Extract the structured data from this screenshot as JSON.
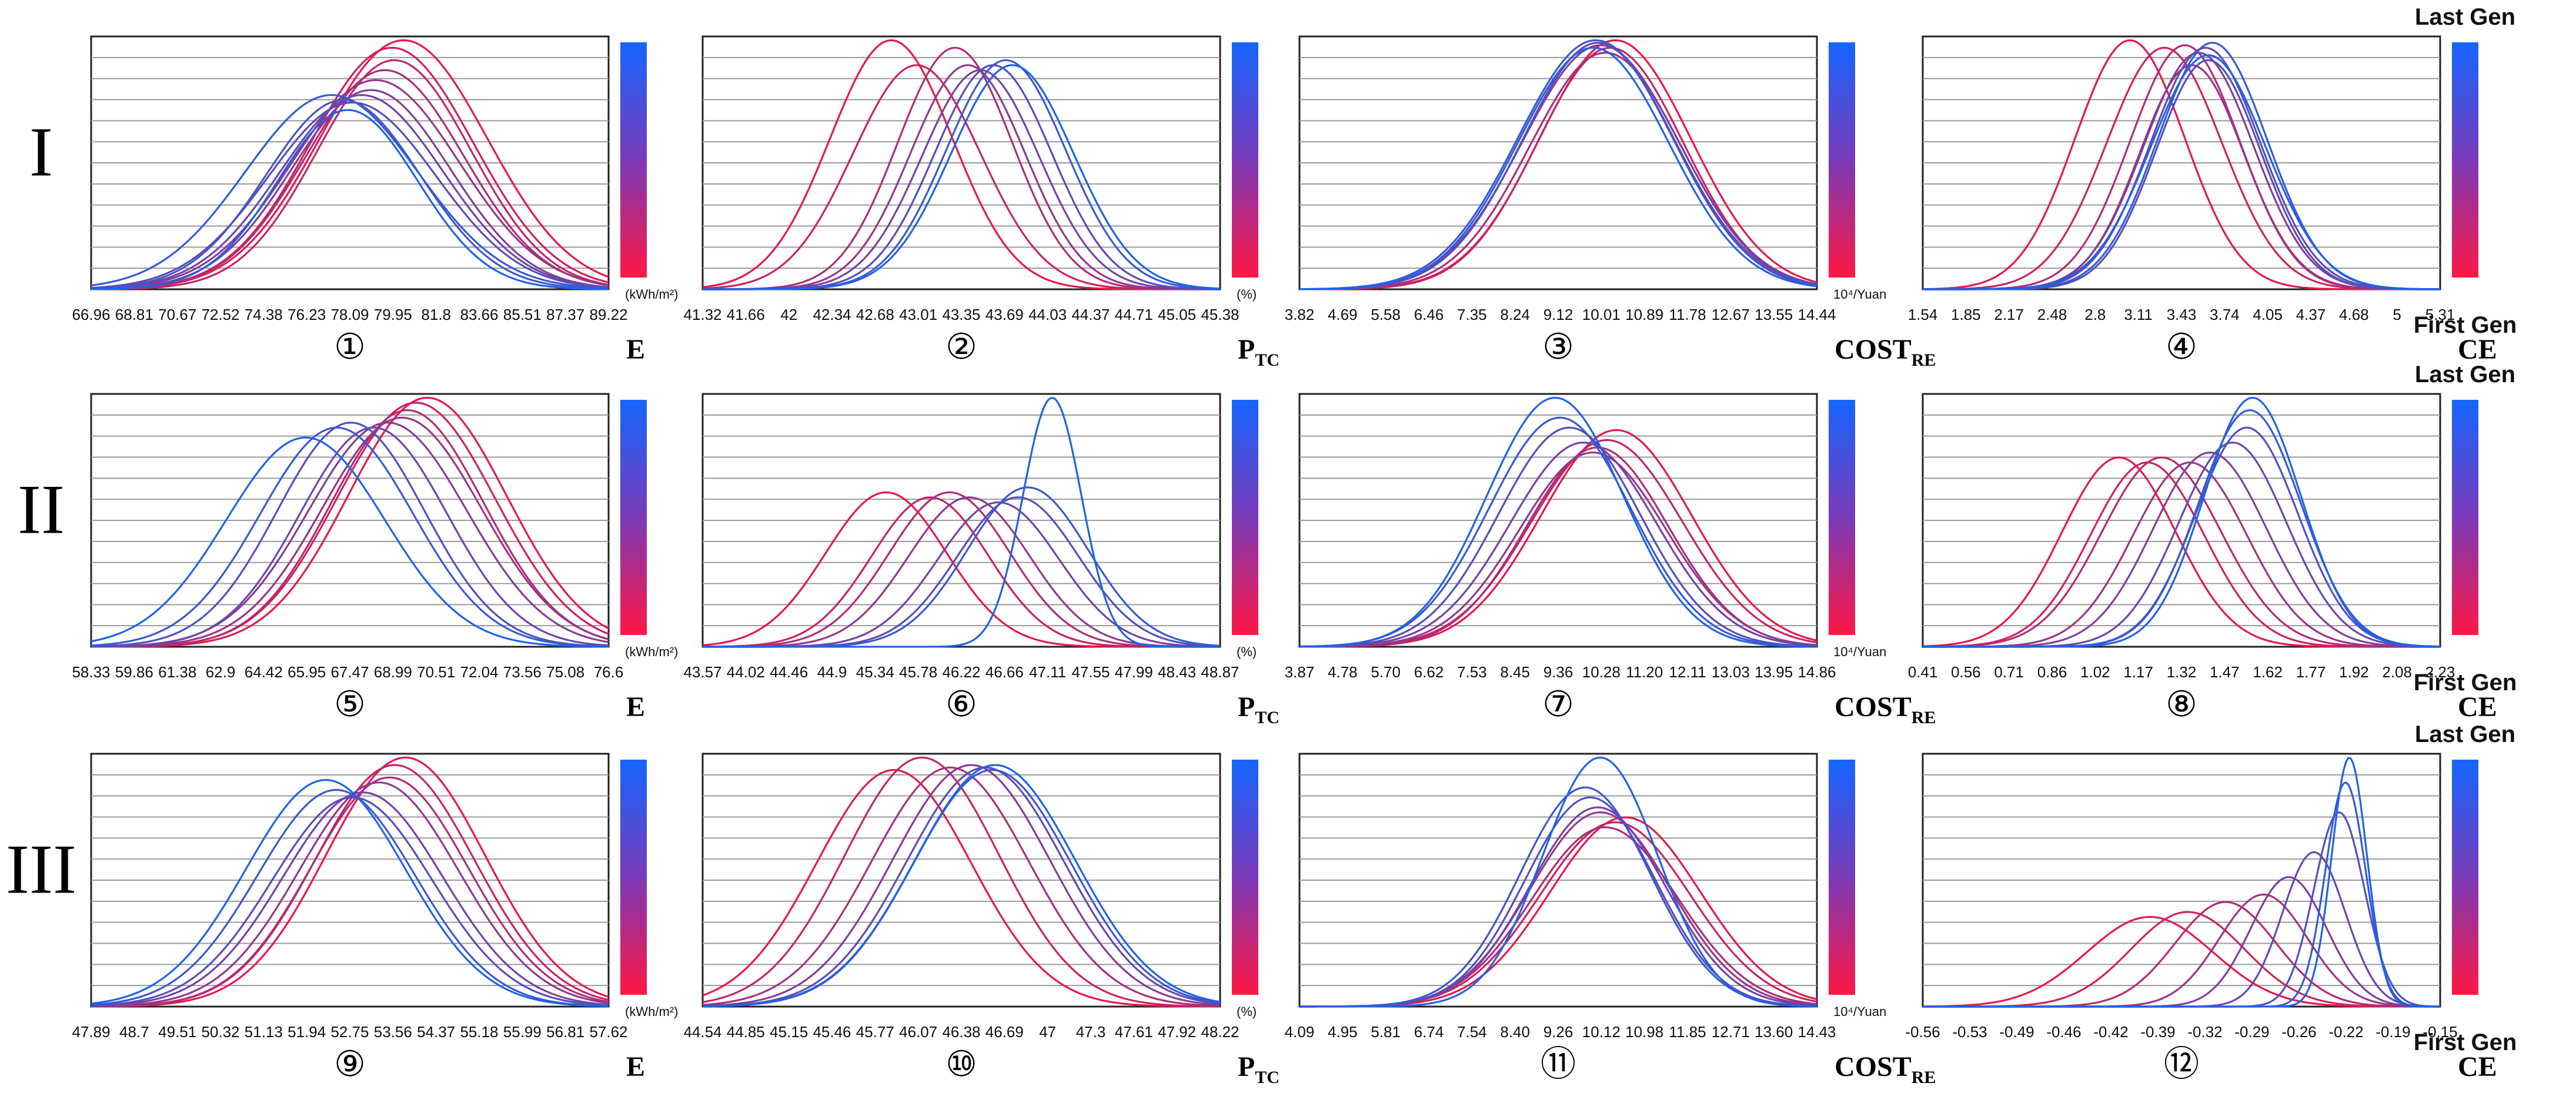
{
  "figure": {
    "row_labels": [
      "I",
      "II",
      "III"
    ],
    "colorbar": {
      "top_color": "#1565ff",
      "mid_color": "#7a3ab8",
      "bottom_color": "#ff1744",
      "top_label": "Last Gen",
      "bottom_label": "First Gen"
    },
    "line_colors": {
      "first_gen": "#e8174a",
      "last_gen": "#1e63e8"
    }
  },
  "chart_data": [
    {
      "id": 1,
      "circled": "①",
      "type": "line",
      "var_label": "E",
      "units": "(kWh/m²)",
      "ticks": [
        "66.96",
        "68.81",
        "70.67",
        "72.52",
        "74.38",
        "76.23",
        "78.09",
        "79.95",
        "81.8",
        "83.66",
        "85.51",
        "87.37",
        "89.22"
      ],
      "xlim": [
        66.96,
        89.22
      ],
      "ylim": [
        0,
        1
      ],
      "gridlines": 11,
      "series": [
        {
          "name": "gen 1",
          "mean": 80.4,
          "sd": 3.6,
          "peak": 1.0
        },
        {
          "name": "gen 2",
          "mean": 79.9,
          "sd": 3.5,
          "peak": 0.97
        },
        {
          "name": "gen 3",
          "mean": 80.0,
          "sd": 3.3,
          "peak": 0.92
        },
        {
          "name": "gen 4",
          "mean": 79.6,
          "sd": 3.4,
          "peak": 0.88
        },
        {
          "name": "gen 5",
          "mean": 79.2,
          "sd": 3.6,
          "peak": 0.84
        },
        {
          "name": "gen 6",
          "mean": 79.0,
          "sd": 3.4,
          "peak": 0.8
        },
        {
          "name": "gen 7",
          "mean": 78.6,
          "sd": 3.5,
          "peak": 0.78
        },
        {
          "name": "gen 8",
          "mean": 78.2,
          "sd": 3.6,
          "peak": 0.75
        },
        {
          "name": "gen 9",
          "mean": 77.8,
          "sd": 3.3,
          "peak": 0.76
        },
        {
          "name": "gen 10",
          "mean": 77.3,
          "sd": 3.7,
          "peak": 0.78
        },
        {
          "name": "gen 11",
          "mean": 78.0,
          "sd": 3.0,
          "peak": 0.72
        }
      ]
    },
    {
      "id": 2,
      "circled": "②",
      "type": "line",
      "var_label": "P",
      "sub": "TC",
      "units": "(%)",
      "ticks": [
        "41.32",
        "41.66",
        "42",
        "42.34",
        "42.68",
        "43.01",
        "43.35",
        "43.69",
        "44.03",
        "44.37",
        "44.71",
        "45.05",
        "45.38"
      ],
      "xlim": [
        41.32,
        45.38
      ],
      "ylim": [
        0,
        1
      ],
      "gridlines": 11,
      "series": [
        {
          "name": "gen 1",
          "mean": 42.8,
          "sd": 0.48,
          "peak": 1.0
        },
        {
          "name": "gen 2",
          "mean": 43.0,
          "sd": 0.5,
          "peak": 0.9
        },
        {
          "name": "gen 3",
          "mean": 43.3,
          "sd": 0.45,
          "peak": 0.97
        },
        {
          "name": "gen 4",
          "mean": 43.4,
          "sd": 0.45,
          "peak": 0.9
        },
        {
          "name": "gen 5",
          "mean": 43.5,
          "sd": 0.46,
          "peak": 0.88
        },
        {
          "name": "gen 6",
          "mean": 43.6,
          "sd": 0.46,
          "peak": 0.9
        },
        {
          "name": "gen 7",
          "mean": 43.7,
          "sd": 0.47,
          "peak": 0.92
        },
        {
          "name": "gen 8",
          "mean": 43.75,
          "sd": 0.48,
          "peak": 0.9
        }
      ]
    },
    {
      "id": 3,
      "circled": "③",
      "type": "line",
      "var_label": "COST",
      "sub": "RE",
      "units": "10⁴/Yuan",
      "ticks": [
        "3.82",
        "4.69",
        "5.58",
        "6.46",
        "7.35",
        "8.24",
        "9.12",
        "10.01",
        "10.89",
        "11.78",
        "12.67",
        "13.55",
        "14.44"
      ],
      "xlim": [
        3.82,
        14.44
      ],
      "ylim": [
        0,
        1
      ],
      "gridlines": 11,
      "series": [
        {
          "name": "gen 1",
          "mean": 10.3,
          "sd": 1.55,
          "peak": 1.0
        },
        {
          "name": "gen 2",
          "mean": 10.2,
          "sd": 1.5,
          "peak": 0.97
        },
        {
          "name": "gen 3",
          "mean": 10.1,
          "sd": 1.55,
          "peak": 0.95
        },
        {
          "name": "gen 4",
          "mean": 10.0,
          "sd": 1.6,
          "peak": 0.98
        },
        {
          "name": "gen 5",
          "mean": 9.95,
          "sd": 1.55,
          "peak": 0.99
        },
        {
          "name": "gen 6",
          "mean": 9.9,
          "sd": 1.6,
          "peak": 1.0
        },
        {
          "name": "gen 7",
          "mean": 9.85,
          "sd": 1.55,
          "peak": 0.97
        }
      ]
    },
    {
      "id": 4,
      "circled": "④",
      "type": "line",
      "var_label": "CE",
      "units": "",
      "ticks": [
        "1.54",
        "1.85",
        "2.17",
        "2.48",
        "2.8",
        "3.11",
        "3.43",
        "3.74",
        "4.05",
        "4.37",
        "4.68",
        "5",
        "5.31"
      ],
      "xlim": [
        1.54,
        5.31
      ],
      "ylim": [
        0,
        1
      ],
      "gridlines": 11,
      "series": [
        {
          "name": "gen 1",
          "mean": 3.05,
          "sd": 0.4,
          "peak": 1.0
        },
        {
          "name": "gen 2",
          "mean": 3.3,
          "sd": 0.42,
          "peak": 0.97
        },
        {
          "name": "gen 3",
          "mean": 3.45,
          "sd": 0.4,
          "peak": 0.98
        },
        {
          "name": "gen 4",
          "mean": 3.5,
          "sd": 0.38,
          "peak": 0.9
        },
        {
          "name": "gen 5",
          "mean": 3.55,
          "sd": 0.4,
          "peak": 0.95
        },
        {
          "name": "gen 6",
          "mean": 3.6,
          "sd": 0.4,
          "peak": 0.97
        },
        {
          "name": "gen 7",
          "mean": 3.62,
          "sd": 0.38,
          "peak": 0.92
        },
        {
          "name": "gen 8",
          "mean": 3.65,
          "sd": 0.4,
          "peak": 0.99
        },
        {
          "name": "gen 9",
          "mean": 3.62,
          "sd": 0.42,
          "peak": 0.94
        }
      ]
    },
    {
      "id": 5,
      "circled": "⑤",
      "type": "line",
      "var_label": "E",
      "units": "(kWh/m²)",
      "ticks": [
        "58.33",
        "59.86",
        "61.38",
        "62.9",
        "64.42",
        "65.95",
        "67.47",
        "68.99",
        "70.51",
        "72.04",
        "73.56",
        "75.08",
        "76.6"
      ],
      "xlim": [
        58.33,
        76.6
      ],
      "ylim": [
        0,
        1
      ],
      "gridlines": 11,
      "series": [
        {
          "name": "gen 1",
          "mean": 70.2,
          "sd": 2.8,
          "peak": 1.0
        },
        {
          "name": "gen 2",
          "mean": 69.8,
          "sd": 2.8,
          "peak": 0.98
        },
        {
          "name": "gen 3",
          "mean": 69.5,
          "sd": 2.7,
          "peak": 0.95
        },
        {
          "name": "gen 4",
          "mean": 69.3,
          "sd": 2.8,
          "peak": 0.92
        },
        {
          "name": "gen 5",
          "mean": 68.8,
          "sd": 2.8,
          "peak": 0.9
        },
        {
          "name": "gen 6",
          "mean": 68.3,
          "sd": 2.6,
          "peak": 0.88
        },
        {
          "name": "gen 7",
          "mean": 67.5,
          "sd": 2.6,
          "peak": 0.9
        },
        {
          "name": "gen 8",
          "mean": 67.0,
          "sd": 2.7,
          "peak": 0.88
        },
        {
          "name": "gen 9",
          "mean": 65.9,
          "sd": 2.8,
          "peak": 0.84
        }
      ]
    },
    {
      "id": 6,
      "circled": "⑥",
      "type": "line",
      "var_label": "P",
      "sub": "TC",
      "units": "(%)",
      "ticks": [
        "43.57",
        "44.02",
        "44.46",
        "44.9",
        "45.34",
        "45.78",
        "46.22",
        "46.66",
        "47.11",
        "47.55",
        "47.99",
        "48.43",
        "48.87"
      ],
      "xlim": [
        43.57,
        48.87
      ],
      "ylim": [
        0,
        1
      ],
      "gridlines": 11,
      "series": [
        {
          "name": "gen 1",
          "mean": 45.45,
          "sd": 0.62,
          "peak": 0.62
        },
        {
          "name": "gen 2",
          "mean": 45.9,
          "sd": 0.6,
          "peak": 0.6
        },
        {
          "name": "gen 3",
          "mean": 46.1,
          "sd": 0.62,
          "peak": 0.62
        },
        {
          "name": "gen 4",
          "mean": 46.3,
          "sd": 0.62,
          "peak": 0.6
        },
        {
          "name": "gen 5",
          "mean": 46.6,
          "sd": 0.62,
          "peak": 0.58
        },
        {
          "name": "gen 6",
          "mean": 46.8,
          "sd": 0.62,
          "peak": 0.6
        },
        {
          "name": "gen 7",
          "mean": 46.9,
          "sd": 0.62,
          "peak": 0.64
        },
        {
          "name": "gen 8",
          "mean": 47.15,
          "sd": 0.3,
          "peak": 1.0
        }
      ]
    },
    {
      "id": 7,
      "circled": "⑦",
      "type": "line",
      "var_label": "COST",
      "sub": "RE",
      "units": "10⁴/Yuan",
      "ticks": [
        "3.87",
        "4.78",
        "5.70",
        "6.62",
        "7.53",
        "8.45",
        "9.36",
        "10.28",
        "11.20",
        "12.11",
        "13.03",
        "13.95",
        "14.86"
      ],
      "xlim": [
        3.87,
        14.86
      ],
      "ylim": [
        0,
        1
      ],
      "gridlines": 11,
      "series": [
        {
          "name": "gen 1",
          "mean": 10.6,
          "sd": 1.6,
          "peak": 0.87
        },
        {
          "name": "gen 2",
          "mean": 10.4,
          "sd": 1.6,
          "peak": 0.83
        },
        {
          "name": "gen 3",
          "mean": 10.2,
          "sd": 1.5,
          "peak": 0.8
        },
        {
          "name": "gen 4",
          "mean": 10.1,
          "sd": 1.55,
          "peak": 0.78
        },
        {
          "name": "gen 5",
          "mean": 9.9,
          "sd": 1.55,
          "peak": 0.82
        },
        {
          "name": "gen 6",
          "mean": 9.6,
          "sd": 1.5,
          "peak": 0.88
        },
        {
          "name": "gen 7",
          "mean": 9.4,
          "sd": 1.5,
          "peak": 0.92
        },
        {
          "name": "gen 8",
          "mean": 9.3,
          "sd": 1.45,
          "peak": 1.0
        }
      ]
    },
    {
      "id": 8,
      "circled": "⑧",
      "type": "line",
      "var_label": "CE",
      "units": "",
      "ticks": [
        "0.41",
        "0.56",
        "0.71",
        "0.86",
        "1.02",
        "1.17",
        "1.32",
        "1.47",
        "1.62",
        "1.77",
        "1.92",
        "2.08",
        "2.23"
      ],
      "xlim": [
        0.41,
        2.23
      ],
      "ylim": [
        0,
        1
      ],
      "gridlines": 11,
      "series": [
        {
          "name": "gen 1",
          "mean": 1.1,
          "sd": 0.2,
          "peak": 0.76
        },
        {
          "name": "gen 2",
          "mean": 1.2,
          "sd": 0.2,
          "peak": 0.74
        },
        {
          "name": "gen 3",
          "mean": 1.25,
          "sd": 0.21,
          "peak": 0.76
        },
        {
          "name": "gen 4",
          "mean": 1.35,
          "sd": 0.2,
          "peak": 0.74
        },
        {
          "name": "gen 5",
          "mean": 1.42,
          "sd": 0.2,
          "peak": 0.78
        },
        {
          "name": "gen 6",
          "mean": 1.5,
          "sd": 0.19,
          "peak": 0.82
        },
        {
          "name": "gen 7",
          "mean": 1.55,
          "sd": 0.18,
          "peak": 0.88
        },
        {
          "name": "gen 8",
          "mean": 1.56,
          "sd": 0.18,
          "peak": 0.95
        },
        {
          "name": "gen 9",
          "mean": 1.57,
          "sd": 0.17,
          "peak": 1.0
        }
      ]
    },
    {
      "id": 9,
      "circled": "⑨",
      "type": "line",
      "var_label": "E",
      "units": "(kWh/m²)",
      "ticks": [
        "47.89",
        "48.7",
        "49.51",
        "50.32",
        "51.13",
        "51.94",
        "52.75",
        "53.56",
        "54.37",
        "55.18",
        "55.99",
        "56.81",
        "57.62"
      ],
      "xlim": [
        47.89,
        57.62
      ],
      "ylim": [
        0,
        1
      ],
      "gridlines": 11,
      "series": [
        {
          "name": "gen 1",
          "mean": 53.8,
          "sd": 1.5,
          "peak": 1.0
        },
        {
          "name": "gen 2",
          "mean": 53.6,
          "sd": 1.5,
          "peak": 0.97
        },
        {
          "name": "gen 3",
          "mean": 53.5,
          "sd": 1.48,
          "peak": 0.92
        },
        {
          "name": "gen 4",
          "mean": 53.3,
          "sd": 1.5,
          "peak": 0.9
        },
        {
          "name": "gen 5",
          "mean": 53.0,
          "sd": 1.5,
          "peak": 0.86
        },
        {
          "name": "gen 6",
          "mean": 52.8,
          "sd": 1.5,
          "peak": 0.84
        },
        {
          "name": "gen 7",
          "mean": 52.5,
          "sd": 1.48,
          "peak": 0.87
        },
        {
          "name": "gen 8",
          "mean": 52.3,
          "sd": 1.5,
          "peak": 0.91
        }
      ]
    },
    {
      "id": 10,
      "circled": "⑩",
      "type": "line",
      "var_label": "P",
      "sub": "TC",
      "units": "(%)",
      "ticks": [
        "44.54",
        "44.85",
        "45.15",
        "45.46",
        "45.77",
        "46.07",
        "46.38",
        "46.69",
        "47",
        "47.3",
        "47.61",
        "47.92",
        "48.22"
      ],
      "xlim": [
        44.54,
        48.22
      ],
      "ylim": [
        0,
        1
      ],
      "gridlines": 11,
      "series": [
        {
          "name": "gen 1",
          "mean": 45.9,
          "sd": 0.55,
          "peak": 0.95
        },
        {
          "name": "gen 2",
          "mean": 46.1,
          "sd": 0.55,
          "peak": 1.0
        },
        {
          "name": "gen 3",
          "mean": 46.3,
          "sd": 0.56,
          "peak": 0.96
        },
        {
          "name": "gen 4",
          "mean": 46.45,
          "sd": 0.56,
          "peak": 0.97
        },
        {
          "name": "gen 5",
          "mean": 46.55,
          "sd": 0.56,
          "peak": 0.96
        },
        {
          "name": "gen 6",
          "mean": 46.6,
          "sd": 0.56,
          "peak": 0.95
        },
        {
          "name": "gen 7",
          "mean": 46.62,
          "sd": 0.57,
          "peak": 0.97
        }
      ]
    },
    {
      "id": 11,
      "circled": "⑪",
      "type": "line",
      "var_label": "COST",
      "sub": "RE",
      "units": "10⁴/Yuan",
      "ticks": [
        "4.09",
        "4.95",
        "5.81",
        "6.74",
        "7.54",
        "8.40",
        "9.26",
        "10.12",
        "10.98",
        "11.85",
        "12.71",
        "13.60",
        "14.43"
      ],
      "xlim": [
        4.09,
        14.43
      ],
      "ylim": [
        0,
        1
      ],
      "gridlines": 11,
      "series": [
        {
          "name": "gen 1",
          "mean": 10.6,
          "sd": 1.5,
          "peak": 0.76
        },
        {
          "name": "gen 2",
          "mean": 10.4,
          "sd": 1.5,
          "peak": 0.74
        },
        {
          "name": "gen 3",
          "mean": 10.2,
          "sd": 1.45,
          "peak": 0.72
        },
        {
          "name": "gen 4",
          "mean": 10.1,
          "sd": 1.4,
          "peak": 0.78
        },
        {
          "name": "gen 5",
          "mean": 10.05,
          "sd": 1.35,
          "peak": 0.8
        },
        {
          "name": "gen 6",
          "mean": 9.9,
          "sd": 1.3,
          "peak": 0.84
        },
        {
          "name": "gen 7",
          "mean": 9.8,
          "sd": 1.3,
          "peak": 0.88
        },
        {
          "name": "gen 8",
          "mean": 10.1,
          "sd": 1.15,
          "peak": 1.0
        }
      ]
    },
    {
      "id": 12,
      "circled": "⑫",
      "type": "line",
      "var_label": "CE",
      "units": "",
      "ticks": [
        "-0.56",
        "-0.53",
        "-0.49",
        "-0.46",
        "-0.42",
        "-0.39",
        "-0.32",
        "-0.29",
        "-0.26",
        "-0.22",
        "-0.19",
        "-0.15"
      ],
      "xlim": [
        -0.56,
        -0.15
      ],
      "ylim": [
        0,
        1
      ],
      "gridlines": 11,
      "series": [
        {
          "name": "gen 1",
          "mean": -0.38,
          "sd": 0.05,
          "peak": 0.36
        },
        {
          "name": "gen 2",
          "mean": -0.35,
          "sd": 0.045,
          "peak": 0.38
        },
        {
          "name": "gen 3",
          "mean": -0.32,
          "sd": 0.04,
          "peak": 0.42
        },
        {
          "name": "gen 4",
          "mean": -0.29,
          "sd": 0.035,
          "peak": 0.45
        },
        {
          "name": "gen 5",
          "mean": -0.27,
          "sd": 0.03,
          "peak": 0.52
        },
        {
          "name": "gen 6",
          "mean": -0.25,
          "sd": 0.025,
          "peak": 0.62
        },
        {
          "name": "gen 7",
          "mean": -0.23,
          "sd": 0.02,
          "peak": 0.78
        },
        {
          "name": "gen 8",
          "mean": -0.225,
          "sd": 0.016,
          "peak": 0.9
        },
        {
          "name": "gen 9",
          "mean": -0.222,
          "sd": 0.014,
          "peak": 1.0
        }
      ]
    }
  ]
}
